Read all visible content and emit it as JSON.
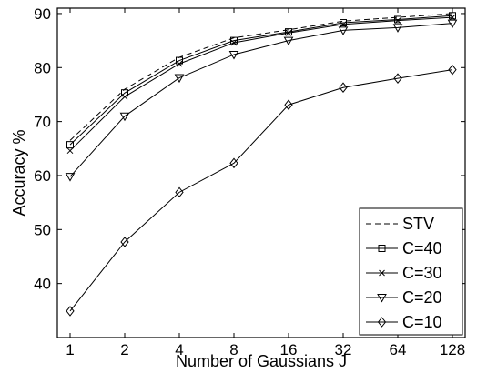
{
  "chart_data": {
    "type": "line",
    "xlabel": "Number of Gaussians J",
    "ylabel": "Accuracy %",
    "x": [
      1,
      2,
      4,
      8,
      16,
      32,
      64,
      128
    ],
    "x_tick_labels": [
      "1",
      "2",
      "4",
      "8",
      "16",
      "32",
      "64",
      "128"
    ],
    "x_scale": "log2",
    "ylim": [
      30,
      91
    ],
    "y_ticks": [
      40,
      50,
      60,
      70,
      80,
      90
    ],
    "y_tick_labels": [
      "40",
      "50",
      "60",
      "70",
      "80",
      "90"
    ],
    "grid": false,
    "legend_position": "bottom-right",
    "series": [
      {
        "name": "STV",
        "line_style": "dashed",
        "marker": "none",
        "values": [
          66.5,
          76.0,
          81.9,
          85.5,
          87.0,
          88.6,
          89.3,
          90.0
        ]
      },
      {
        "name": "C=40",
        "line_style": "solid",
        "marker": "square",
        "values": [
          65.7,
          75.3,
          81.3,
          85.0,
          86.6,
          88.3,
          88.9,
          89.6
        ]
      },
      {
        "name": "C=30",
        "line_style": "solid",
        "marker": "x",
        "values": [
          64.6,
          74.6,
          80.7,
          84.6,
          86.4,
          88.0,
          88.7,
          89.3
        ]
      },
      {
        "name": "C=20",
        "line_style": "solid",
        "marker": "triangle-down",
        "values": [
          59.8,
          71.0,
          78.1,
          82.4,
          85.0,
          86.9,
          87.4,
          88.2
        ]
      },
      {
        "name": "C=10",
        "line_style": "solid",
        "marker": "diamond",
        "values": [
          34.9,
          47.7,
          56.9,
          62.3,
          73.1,
          76.3,
          78.0,
          79.6
        ]
      }
    ]
  }
}
